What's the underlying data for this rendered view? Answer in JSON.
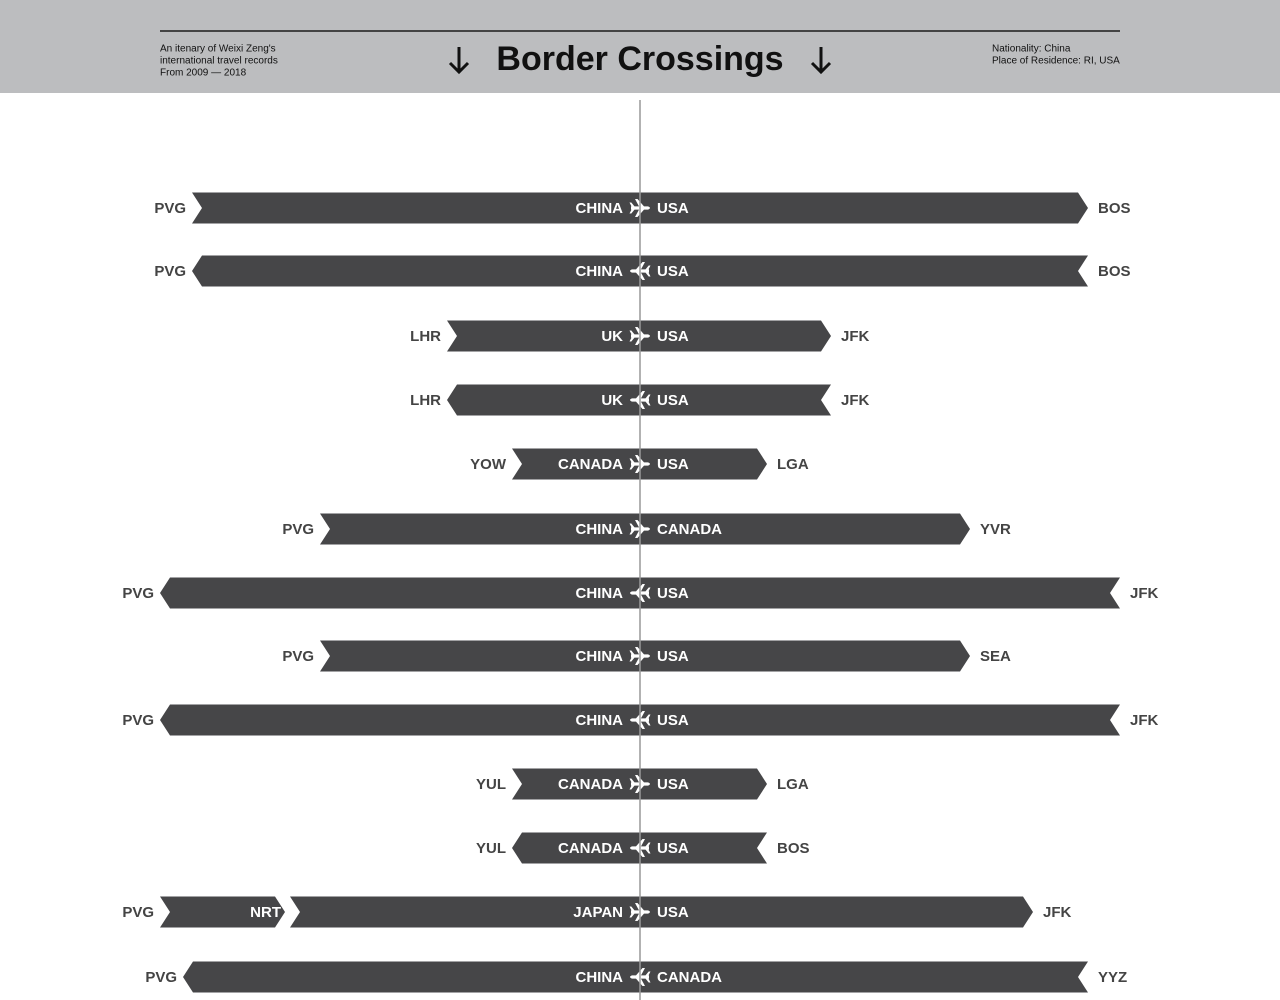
{
  "header": {
    "description": [
      "An itenary of Weixi Zeng's",
      "international travel records",
      "From 2009 — 2018"
    ],
    "title": "Border Crossings",
    "nationality": "Nationality: China",
    "residence": "Place of Residence: RI, USA"
  },
  "crossings": [
    {
      "left_airport": "PVG",
      "right_airport": "BOS",
      "left_country": "CHINA",
      "right_country": "USA",
      "direction": "right"
    },
    {
      "left_airport": "PVG",
      "right_airport": "BOS",
      "left_country": "CHINA",
      "right_country": "USA",
      "direction": "left"
    },
    {
      "left_airport": "LHR",
      "right_airport": "JFK",
      "left_country": "UK",
      "right_country": "USA",
      "direction": "right"
    },
    {
      "left_airport": "LHR",
      "right_airport": "JFK",
      "left_country": "UK",
      "right_country": "USA",
      "direction": "left"
    },
    {
      "left_airport": "YOW",
      "right_airport": "LGA",
      "left_country": "CANADA",
      "right_country": "USA",
      "direction": "right"
    },
    {
      "left_airport": "PVG",
      "right_airport": "YVR",
      "left_country": "CHINA",
      "right_country": "CANADA",
      "direction": "right"
    },
    {
      "left_airport": "PVG",
      "right_airport": "JFK",
      "left_country": "CHINA",
      "right_country": "USA",
      "direction": "left"
    },
    {
      "left_airport": "PVG",
      "right_airport": "SEA",
      "left_country": "CHINA",
      "right_country": "USA",
      "direction": "right"
    },
    {
      "left_airport": "PVG",
      "right_airport": "JFK",
      "left_country": "CHINA",
      "right_country": "USA",
      "direction": "left"
    },
    {
      "left_airport": "YUL",
      "right_airport": "LGA",
      "left_country": "CANADA",
      "right_country": "USA",
      "direction": "right"
    },
    {
      "left_airport": "YUL",
      "right_airport": "BOS",
      "left_country": "CANADA",
      "right_country": "USA",
      "direction": "left"
    },
    {
      "left_airport": "PVG",
      "stop": "NRT",
      "right_airport": "JFK",
      "left_country": "JAPAN",
      "right_country": "USA",
      "direction": "right"
    },
    {
      "left_airport": "PVG",
      "right_airport": "YYZ",
      "left_country": "CHINA",
      "right_country": "CANADA",
      "direction": "left"
    }
  ]
}
